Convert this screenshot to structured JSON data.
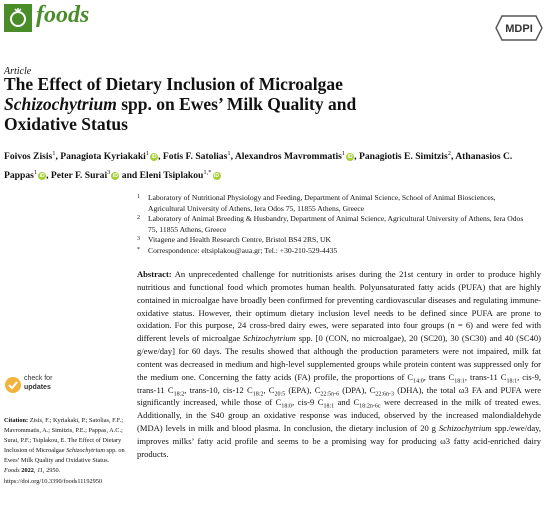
{
  "header": {
    "journal": "foods",
    "publisher": "MDPI"
  },
  "article_type": "Article",
  "title": [
    {
      "t": "The Effect of Dietary Inclusion of Microalgae "
    },
    {
      "t": "Schizochytrium",
      "i": true
    },
    {
      "t": " spp. on Ewes’ Milk Quality and Oxidative Status"
    }
  ],
  "authors": [
    {
      "name": "Foivos Zisis",
      "sup": "1",
      "orcid": false,
      "sep": ", "
    },
    {
      "name": "Panagiota Kyriakaki",
      "sup": "1",
      "orcid": true,
      "sep": ", "
    },
    {
      "name": "Fotis F. Satolias",
      "sup": "1",
      "orcid": false,
      "sep": ", "
    },
    {
      "name": "Alexandros Mavrommatis",
      "sup": "1",
      "orcid": true,
      "sep": ", "
    },
    {
      "name": "Panagiotis E. Simitzis",
      "sup": "2",
      "orcid": false,
      "sep": ", "
    },
    {
      "name": "Athanasios C. Pappas",
      "sup": "1",
      "orcid": true,
      "sep": ", "
    },
    {
      "name": "Peter F. Surai",
      "sup": "3",
      "orcid": true,
      "sep": " and "
    },
    {
      "name": "Eleni Tsiplakou",
      "sup": "1,*",
      "orcid": true,
      "sep": ""
    }
  ],
  "affiliations": [
    {
      "mark": "1",
      "text": "Laboratory of Nutritional Physiology and Feeding, Department of Animal Science, School of Animal Biosciences, Agricultural University of Athens, Iera Odos 75, 11855 Athens, Greece"
    },
    {
      "mark": "2",
      "text": "Laboratory of Animal Breeding & Husbandry, Department of Animal Science, Agricultural University of Athens, Iera Odos 75, 11855 Athens, Greece"
    },
    {
      "mark": "3",
      "text": "Vitagene and Health Research Centre, Bristol BS4 2RS, UK"
    },
    {
      "mark": "*",
      "text": "Correspondence: eltsiplakou@aua.gr; Tel.: +30-210-529-4435"
    }
  ],
  "abstract": [
    {
      "t": "Abstract:",
      "b": true
    },
    {
      "t": " An unprecedented challenge for nutritionists arises during the 21st century in order to produce highly nutritious and functional food which promotes human health. Polyunsaturated fatty acids (PUFA) that are highly contained in microalgae have broadly been confirmed for preventing cardiovascular diseases and regulating immune-oxidative status. However, their optimum dietary inclusion level needs to be defined since PUFA are prone to oxidation. For this purpose, 24 cross-bred dairy ewes, were separated into four groups (n = 6) and were fed with different levels of microalgae "
    },
    {
      "t": "Schizochytrium",
      "i": true
    },
    {
      "t": " spp. [0 (CON, no microalgae), 20 (SC20), 30 (SC30) and 40 (SC40) g/ewe/day] for 60 days. The results showed that although the production parameters were not impaired, milk fat content was decreased in medium and high-level supplemented groups while protein content was suppressed only for the medium one. Concerning the fatty acids (FA) profile, the proportions of C"
    },
    {
      "t": "14:0",
      "s": true
    },
    {
      "t": ", trans C"
    },
    {
      "t": "18:1",
      "s": true
    },
    {
      "t": ", trans-11 C"
    },
    {
      "t": "18:1",
      "s": true
    },
    {
      "t": ", cis-9, trans-11 C"
    },
    {
      "t": "18:2",
      "s": true
    },
    {
      "t": ", trans-10, cis-12 C"
    },
    {
      "t": "18:2",
      "s": true
    },
    {
      "t": ", C"
    },
    {
      "t": "20:5",
      "s": true
    },
    {
      "t": " (EPA), C"
    },
    {
      "t": "22:5n-6",
      "s": true
    },
    {
      "t": " (DPA), C"
    },
    {
      "t": "22:6n-3",
      "s": true
    },
    {
      "t": " (DHA), the total ω3 FA and PUFA were significantly increased, while those of C"
    },
    {
      "t": "18:0",
      "s": true
    },
    {
      "t": ", cis-9 C"
    },
    {
      "t": "18:1",
      "s": true
    },
    {
      "t": " and C"
    },
    {
      "t": "18:2n-6c",
      "s": true
    },
    {
      "t": " were decreased in the milk of treated ewes. Additionally, in the S40 group an oxidative response was induced, observed by the increased malondialdehyde (MDA) levels in milk and blood plasma. In conclusion, the dietary inclusion of 20 g "
    },
    {
      "t": "Schizochytrium",
      "i": true
    },
    {
      "t": " spp./ewe/day, improves milks’ fatty acid profile and seems to be a promising way for producing ω3 fatty acid-enriched dairy products."
    }
  ],
  "updates_badge": [
    "check for",
    "updates"
  ],
  "citation": [
    {
      "t": "Citation:",
      "b": true
    },
    {
      "t": " Zisis, F.; Kyriakaki, P.; Satolias, F.F.; Mavrommatis, A.; Simitzis, P.E.; Pappas, A.C.; Surai, P.F.; Tsiplakou, E. The Effect of Dietary Inclusion of Microalgae "
    },
    {
      "t": "Schizochytrium",
      "i": true
    },
    {
      "t": " spp. on Ewes’ Milk Quality and Oxidative Status. "
    },
    {
      "t": "Foods",
      "i": true
    },
    {
      "t": " "
    },
    {
      "t": "2022",
      "b": true
    },
    {
      "t": ", "
    },
    {
      "t": "11",
      "i": true
    },
    {
      "t": ", 2950. https://doi.org/10.3390/foods11192950"
    }
  ]
}
